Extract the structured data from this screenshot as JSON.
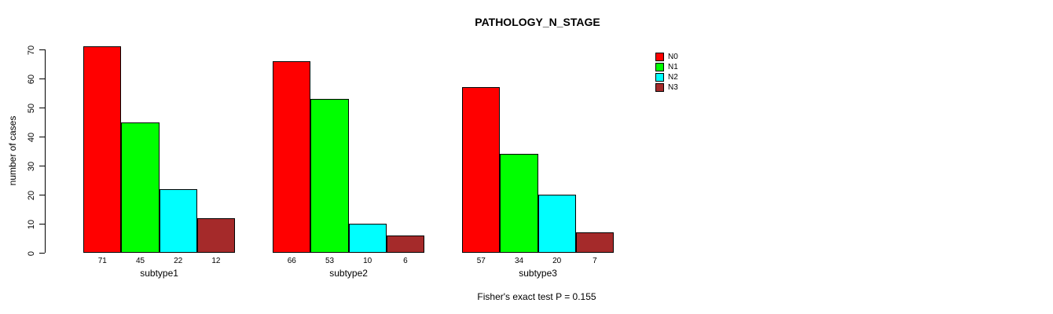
{
  "chart_data": {
    "type": "bar",
    "title": "PATHOLOGY_N_STAGE",
    "xlabel": "",
    "ylabel": "number of cases",
    "categories": [
      "subtype1",
      "subtype2",
      "subtype3"
    ],
    "series": [
      {
        "name": "N0",
        "color": "#FF0000",
        "values": [
          71,
          66,
          57
        ]
      },
      {
        "name": "N1",
        "color": "#00FF00",
        "values": [
          45,
          53,
          34
        ]
      },
      {
        "name": "N2",
        "color": "#00FFFF",
        "values": [
          22,
          10,
          20
        ]
      },
      {
        "name": "N3",
        "color": "#A52A2A",
        "values": [
          12,
          6,
          7
        ]
      }
    ],
    "ylim": [
      0,
      70
    ],
    "yticks": [
      0,
      10,
      20,
      30,
      40,
      50,
      60,
      70
    ],
    "grid": false,
    "legend_position": "top-right",
    "bar_value_labels": true,
    "annotation": "Fisher's exact test P = 0.155",
    "text_color": "#000000",
    "background_color": "#FFFFFF",
    "bar_border_color": "#000000"
  }
}
